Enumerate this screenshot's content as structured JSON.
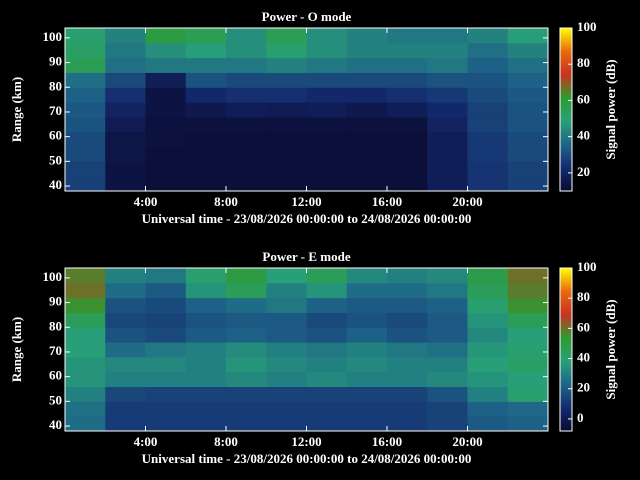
{
  "chart_data": [
    {
      "type": "heatmap",
      "title": "Power - O mode",
      "xlabel": "Universal time - 23/08/2026 00:00:00 to 24/08/2026 00:00:00",
      "ylabel": "Range (km)",
      "colorbar_label": "Signal power (dB)",
      "x": [
        1,
        3,
        5,
        7,
        9,
        11,
        13,
        15,
        17,
        19,
        21,
        23
      ],
      "y": [
        41,
        47,
        53,
        59,
        65,
        71,
        77,
        83,
        89,
        95,
        101
      ],
      "z": [
        [
          28,
          14,
          12,
          12,
          12,
          12,
          12,
          12,
          12,
          18,
          25,
          28
        ],
        [
          28,
          14,
          12,
          12,
          12,
          12,
          12,
          12,
          12,
          18,
          25,
          28
        ],
        [
          30,
          15,
          12,
          12,
          12,
          12,
          12,
          12,
          12,
          18,
          26,
          30
        ],
        [
          30,
          15,
          13,
          12,
          12,
          12,
          12,
          12,
          12,
          18,
          26,
          30
        ],
        [
          32,
          17,
          13,
          13,
          13,
          13,
          13,
          13,
          13,
          20,
          28,
          32
        ],
        [
          33,
          20,
          14,
          16,
          18,
          17,
          18,
          16,
          18,
          22,
          28,
          32
        ],
        [
          35,
          24,
          14,
          22,
          24,
          24,
          22,
          22,
          24,
          26,
          30,
          33
        ],
        [
          38,
          30,
          18,
          32,
          30,
          30,
          30,
          30,
          30,
          32,
          32,
          35
        ],
        [
          55,
          38,
          40,
          40,
          40,
          42,
          40,
          38,
          38,
          40,
          35,
          38
        ],
        [
          52,
          40,
          45,
          48,
          45,
          50,
          45,
          42,
          42,
          42,
          38,
          42
        ],
        [
          50,
          42,
          58,
          55,
          45,
          55,
          45,
          42,
          40,
          40,
          42,
          48
        ]
      ],
      "xlim": [
        0,
        24
      ],
      "xticks": [
        {
          "value": 4,
          "label": "4:00"
        },
        {
          "value": 8,
          "label": "8:00"
        },
        {
          "value": 12,
          "label": "12:00"
        },
        {
          "value": 16,
          "label": "16:00"
        },
        {
          "value": 20,
          "label": "20:00"
        }
      ],
      "ylim": [
        38,
        104
      ],
      "yticks": [
        40,
        50,
        60,
        70,
        80,
        90,
        100
      ],
      "clim": [
        10,
        100
      ],
      "cticks": [
        20,
        40,
        60,
        80,
        100
      ],
      "colormap": [
        "#0a0a30",
        "#142a6e",
        "#1e6488",
        "#28a078",
        "#2e9a30",
        "#c83220",
        "#e86a10",
        "#ffff00"
      ]
    },
    {
      "type": "heatmap",
      "title": "Power - E mode",
      "xlabel": "Universal time - 23/08/2026 00:00:00 to 24/08/2026 00:00:00",
      "ylabel": "Range (km)",
      "colorbar_label": "Signal power (dB)",
      "x": [
        1,
        3,
        5,
        7,
        9,
        11,
        13,
        15,
        17,
        19,
        21,
        23
      ],
      "y": [
        41,
        47,
        53,
        59,
        65,
        71,
        77,
        83,
        89,
        95,
        101
      ],
      "z": [
        [
          25,
          12,
          12,
          12,
          12,
          12,
          12,
          12,
          12,
          14,
          20,
          22
        ],
        [
          26,
          12,
          12,
          12,
          12,
          12,
          12,
          12,
          12,
          14,
          22,
          24
        ],
        [
          30,
          15,
          14,
          14,
          14,
          14,
          14,
          14,
          14,
          18,
          30,
          40
        ],
        [
          35,
          30,
          30,
          30,
          32,
          30,
          32,
          30,
          30,
          32,
          35,
          38
        ],
        [
          35,
          32,
          32,
          30,
          35,
          32,
          30,
          32,
          30,
          30,
          38,
          42
        ],
        [
          38,
          25,
          28,
          30,
          33,
          30,
          28,
          30,
          28,
          26,
          36,
          40
        ],
        [
          38,
          18,
          16,
          20,
          22,
          20,
          18,
          22,
          18,
          20,
          32,
          38
        ],
        [
          45,
          15,
          14,
          18,
          20,
          20,
          16,
          18,
          16,
          20,
          35,
          45
        ],
        [
          55,
          18,
          16,
          22,
          25,
          28,
          22,
          20,
          20,
          22,
          40,
          55
        ],
        [
          60,
          25,
          20,
          35,
          45,
          30,
          35,
          25,
          25,
          28,
          45,
          58
        ],
        [
          58,
          30,
          28,
          40,
          50,
          38,
          45,
          32,
          30,
          32,
          48,
          60
        ]
      ],
      "xlim": [
        0,
        24
      ],
      "xticks": [
        {
          "value": 4,
          "label": "4:00"
        },
        {
          "value": 8,
          "label": "8:00"
        },
        {
          "value": 12,
          "label": "12:00"
        },
        {
          "value": 16,
          "label": "16:00"
        },
        {
          "value": 20,
          "label": "20:00"
        }
      ],
      "ylim": [
        38,
        104
      ],
      "yticks": [
        40,
        50,
        60,
        70,
        80,
        90,
        100
      ],
      "clim": [
        -8,
        100
      ],
      "cticks": [
        0,
        20,
        40,
        60,
        80,
        100
      ],
      "colormap": [
        "#0a0a30",
        "#142a6e",
        "#1e6488",
        "#28a078",
        "#2e9a30",
        "#c83220",
        "#e86a10",
        "#ffff00"
      ]
    }
  ]
}
